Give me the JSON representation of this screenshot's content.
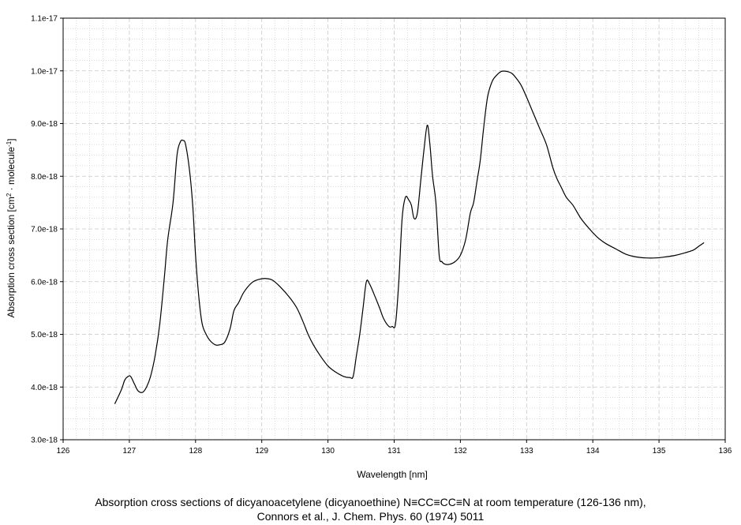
{
  "chart_data": {
    "type": "line",
    "title": "",
    "xlabel": "Wavelength [nm]",
    "ylabel": {
      "main": "Absorption cross section [cm",
      "sup1": "2",
      "mid": " · molecule",
      "sup2": "-1",
      "end": "]"
    },
    "xlim": [
      126,
      136
    ],
    "ylim": [
      3e-18,
      1.1e-17
    ],
    "x_ticks": [
      126,
      127,
      128,
      129,
      130,
      131,
      132,
      133,
      134,
      135,
      136
    ],
    "x_tick_labels": [
      "126",
      "127",
      "128",
      "129",
      "130",
      "131",
      "132",
      "133",
      "134",
      "135",
      "136"
    ],
    "y_ticks": [
      3e-18,
      4e-18,
      5e-18,
      6e-18,
      7e-18,
      8e-18,
      9e-18,
      1e-17,
      1.1e-17
    ],
    "y_tick_labels": [
      "3.0e-18",
      "4.0e-18",
      "5.0e-18",
      "6.0e-18",
      "7.0e-18",
      "8.0e-18",
      "9.0e-18",
      "1.0e-17",
      "1.1e-17"
    ],
    "grid": true,
    "legend": "none",
    "line_color": "#000000",
    "grid_color": "#c8c8c8",
    "series": [
      {
        "x": [
          126.78,
          126.88,
          126.93,
          126.98,
          127.02,
          127.08,
          127.13,
          127.2,
          127.26,
          127.32,
          127.39,
          127.46,
          127.53,
          127.58,
          127.66,
          127.72,
          127.77,
          127.81,
          127.85,
          127.91,
          127.96,
          128.0,
          128.05,
          128.1,
          128.16,
          128.22,
          128.3,
          128.36,
          128.44,
          128.52,
          128.58,
          128.65,
          128.73,
          128.85,
          128.95,
          129.05,
          129.16,
          129.28,
          129.42,
          129.53,
          129.62,
          129.7,
          129.78,
          129.88,
          130.0,
          130.12,
          130.24,
          130.33,
          130.38,
          130.43,
          130.48,
          130.53,
          130.58,
          130.63,
          130.7,
          130.78,
          130.84,
          130.92,
          130.97,
          131.02,
          131.07,
          131.12,
          131.17,
          131.22,
          131.26,
          131.3,
          131.35,
          131.4,
          131.45,
          131.5,
          131.54,
          131.58,
          131.63,
          131.68,
          131.72,
          131.77,
          131.84,
          131.92,
          132.0,
          132.08,
          132.15,
          132.2,
          132.25,
          132.3,
          132.35,
          132.41,
          132.48,
          132.55,
          132.62,
          132.7,
          132.78,
          132.85,
          132.92,
          133.0,
          133.1,
          133.2,
          133.3,
          133.4,
          133.46,
          133.52,
          133.6,
          133.7,
          133.82,
          133.95,
          134.08,
          134.2,
          134.35,
          134.5,
          134.65,
          134.8,
          134.95,
          135.1,
          135.25,
          135.4,
          135.52,
          135.6,
          135.68
        ],
        "y": [
          3.68e-18,
          3.95e-18,
          4.13e-18,
          4.2e-18,
          4.2e-18,
          4.05e-18,
          3.93e-18,
          3.9e-18,
          4e-18,
          4.2e-18,
          4.6e-18,
          5.2e-18,
          6.1e-18,
          6.8e-18,
          7.5e-18,
          8.4e-18,
          8.65e-18,
          8.68e-18,
          8.6e-18,
          8.1e-18,
          7.4e-18,
          6.5e-18,
          5.7e-18,
          5.2e-18,
          5e-18,
          4.88e-18,
          4.8e-18,
          4.8e-18,
          4.85e-18,
          5.1e-18,
          5.45e-18,
          5.6e-18,
          5.8e-18,
          5.98e-18,
          6.04e-18,
          6.06e-18,
          6.03e-18,
          5.9e-18,
          5.7e-18,
          5.5e-18,
          5.25e-18,
          5e-18,
          4.8e-18,
          4.6e-18,
          4.4e-18,
          4.28e-18,
          4.2e-18,
          4.18e-18,
          4.2e-18,
          4.6e-18,
          5e-18,
          5.5e-18,
          6e-18,
          5.95e-18,
          5.75e-18,
          5.5e-18,
          5.3e-18,
          5.15e-18,
          5.15e-18,
          5.2e-18,
          6e-18,
          7.2e-18,
          7.6e-18,
          7.55e-18,
          7.45e-18,
          7.2e-18,
          7.3e-18,
          7.9e-18,
          8.5e-18,
          8.97e-18,
          8.6e-18,
          8e-18,
          7.5e-18,
          6.5e-18,
          6.38e-18,
          6.33e-18,
          6.33e-18,
          6.38e-18,
          6.5e-18,
          6.8e-18,
          7.3e-18,
          7.5e-18,
          7.9e-18,
          8.3e-18,
          8.9e-18,
          9.5e-18,
          9.8e-18,
          9.92e-18,
          9.99e-18,
          9.99e-18,
          9.95e-18,
          9.85e-18,
          9.72e-18,
          9.5e-18,
          9.2e-18,
          8.9e-18,
          8.6e-18,
          8.15e-18,
          7.95e-18,
          7.8e-18,
          7.6e-18,
          7.45e-18,
          7.2e-18,
          7e-18,
          6.83e-18,
          6.72e-18,
          6.62e-18,
          6.52e-18,
          6.47e-18,
          6.45e-18,
          6.45e-18,
          6.47e-18,
          6.5e-18,
          6.55e-18,
          6.6e-18,
          6.67e-18,
          6.74e-18
        ]
      }
    ]
  },
  "caption": {
    "line1": "Absorption cross sections of dicyanoacetylene (dicyanoethine) N≡CC≡CC≡N at room temperature (126-136 nm),",
    "line2": "Connors et al.,  J. Chem. Phys. 60 (1974) 5011"
  }
}
